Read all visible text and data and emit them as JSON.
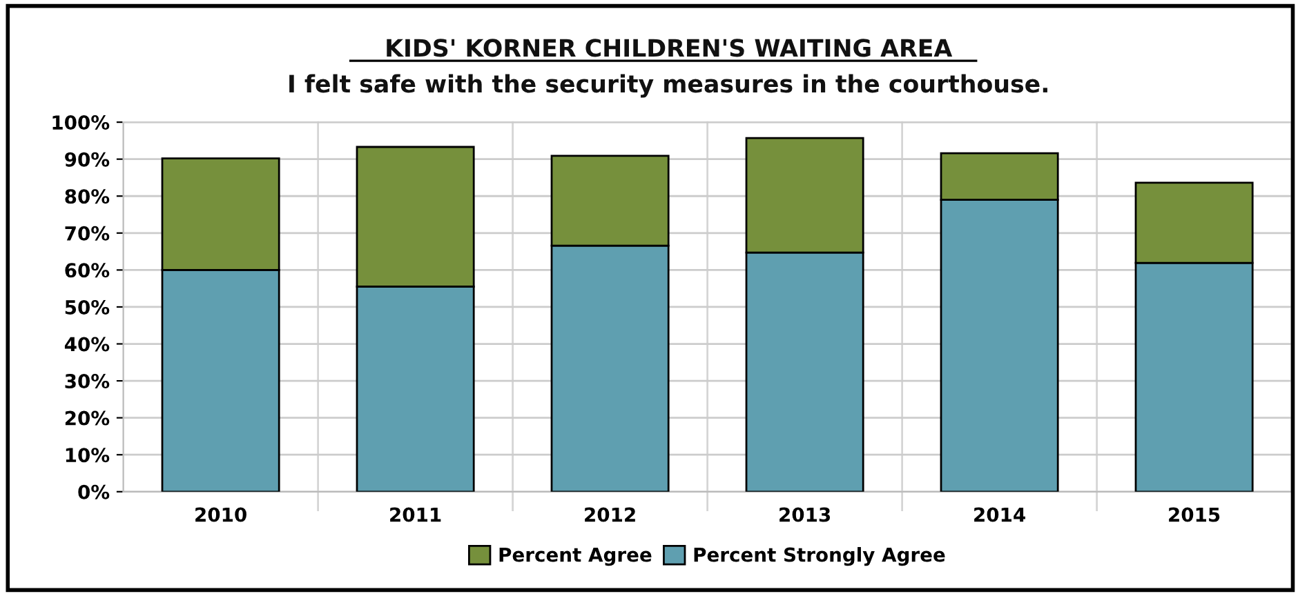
{
  "chart_data": {
    "type": "bar",
    "title": "KIDS' KORNER CHILDREN'S WAITING AREA",
    "subtitle": "I felt safe with the security measures in the courthouse.",
    "categories": [
      "2010",
      "2011",
      "2012",
      "2013",
      "2014",
      "2015"
    ],
    "stacked": true,
    "series": [
      {
        "name": "Percent Strongly Agree",
        "color": "#5f9fb0",
        "values": [
          60,
          55.5,
          66.6,
          64.7,
          79,
          61.9
        ]
      },
      {
        "name": "Percent Agree",
        "color": "#76903c",
        "values": [
          30.2,
          37.8,
          24.3,
          31,
          12.6,
          21.7
        ]
      }
    ],
    "ylim": [
      0,
      100
    ],
    "yticks": [
      {
        "value": 0,
        "label": "0%"
      },
      {
        "value": 10,
        "label": "10%"
      },
      {
        "value": 20,
        "label": "20%"
      },
      {
        "value": 30,
        "label": "30%"
      },
      {
        "value": 40,
        "label": "40%"
      },
      {
        "value": 50,
        "label": "50%"
      },
      {
        "value": 60,
        "label": "60%"
      },
      {
        "value": 70,
        "label": "70%"
      },
      {
        "value": 80,
        "label": "80%"
      },
      {
        "value": 90,
        "label": "90%"
      },
      {
        "value": 100,
        "label": "100%"
      }
    ],
    "grid": true,
    "legend": "bottom"
  }
}
